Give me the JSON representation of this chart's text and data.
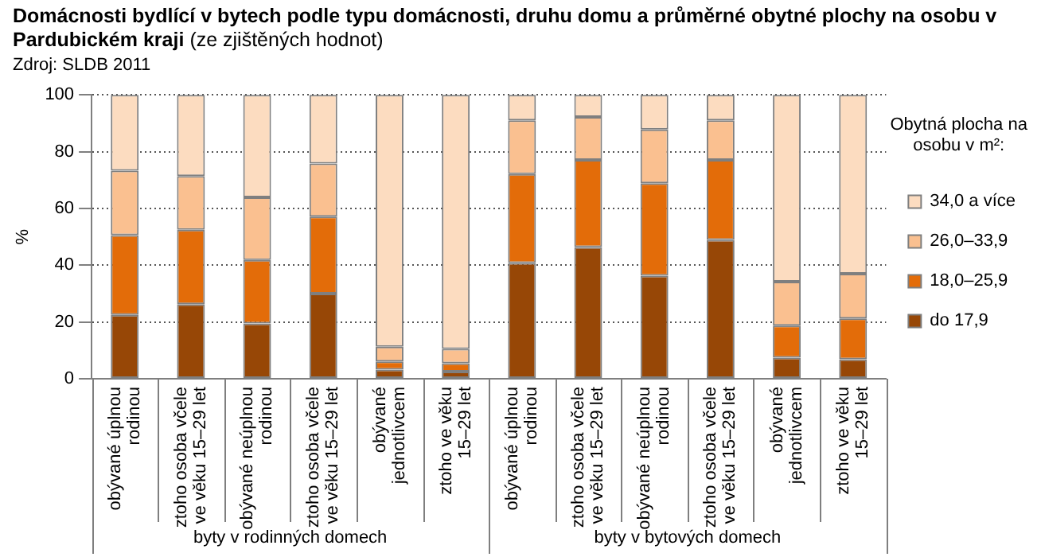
{
  "chart_data": {
    "type": "bar",
    "stacked": true,
    "title": "Domácnosti bydlící v bytech podle typu domácnosti, druhu domu a průměrné obytné plochy na osobu v Pardubickém kraji",
    "subtitle": "(ze zjištěných hodnot)",
    "ylabel": "%",
    "legend_title": "Obytná plocha na osobu v m²:",
    "legend": "right",
    "grid": "y",
    "annotations": [
      "Zdroj: SLDB 2011",
      "byty v rodinných domech",
      "byty v bytových domech"
    ],
    "categories": [
      "obývané úplnou rodinou",
      "ztoho osoba včele ve věku 15–29 let",
      "obývané neúplnou rodinou",
      "ztoho osoba včele ve věku 15–29 let",
      "obývané jednotlivcem",
      "ztoho ve věku 15–29 let",
      "obývané úplnou rodinou",
      "ztoho osoba včele ve věku 15–29 let",
      "obývané neúplnou rodinou",
      "ztoho osoba včele ve věku 15–29 let",
      "obývané jednotlivcem",
      "ztoho ve věku 15–29 let"
    ],
    "ylim": [
      0,
      100
    ],
    "yticks": [
      0,
      20,
      40,
      60,
      80,
      100
    ],
    "series": [
      {
        "name": "do 17,9",
        "color": "#974706",
        "values": [
          22.5,
          26.3,
          19.5,
          30.0,
          3.2,
          2.5,
          40.8,
          46.4,
          36.3,
          48.9,
          7.4,
          6.9
        ]
      },
      {
        "name": "18,0–25,9",
        "color": "#e36c09",
        "values": [
          28.1,
          26.2,
          22.3,
          27.1,
          2.9,
          3.0,
          31.3,
          30.7,
          32.6,
          28.2,
          11.3,
          14.3
        ]
      },
      {
        "name": "26,0–33,9",
        "color": "#fac090",
        "values": [
          22.7,
          18.9,
          22.1,
          18.7,
          5.2,
          5.0,
          18.9,
          15.1,
          18.9,
          13.9,
          15.5,
          15.8
        ]
      },
      {
        "name": "34,0 a více",
        "color": "#fcdcc0",
        "values": [
          26.7,
          28.6,
          36.1,
          24.2,
          88.7,
          89.5,
          9.0,
          7.8,
          12.2,
          9.0,
          65.8,
          63.0
        ]
      }
    ]
  }
}
